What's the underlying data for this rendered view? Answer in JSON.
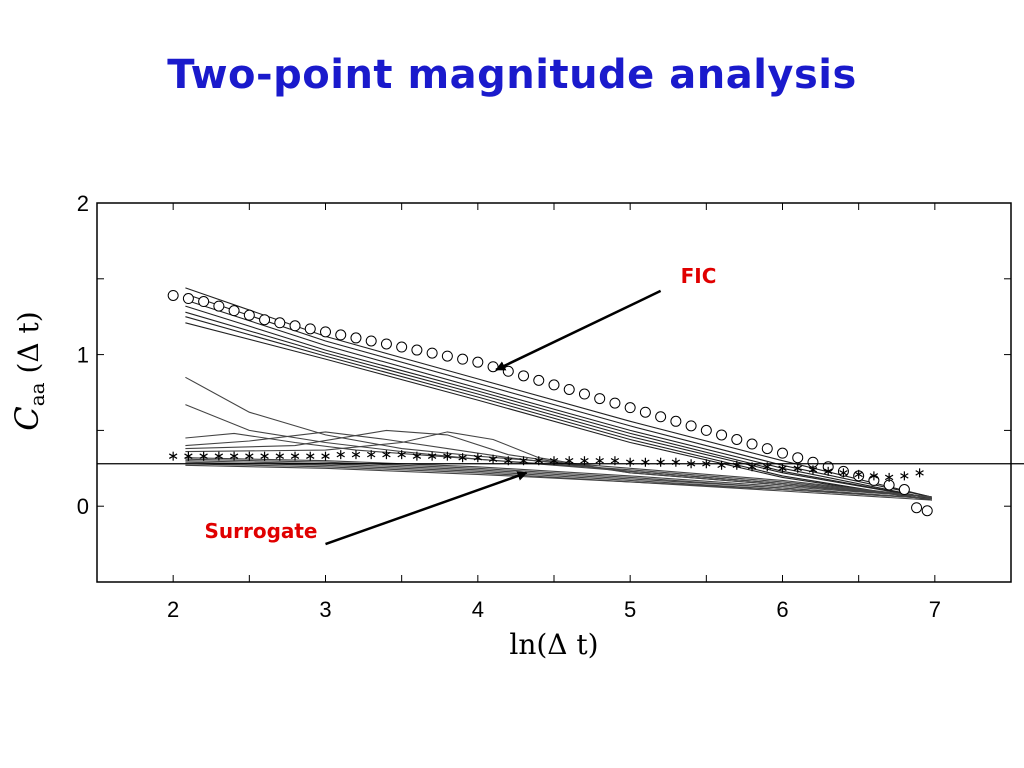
{
  "slide": {
    "title": "Two-point magnitude analysis"
  },
  "colors": {
    "title": "#1a1acc",
    "annotation": "#e00000",
    "axis": "#000000",
    "surrogate_line": "#444444",
    "fic_line": "#222222"
  },
  "chart_data": {
    "type": "line",
    "title": "",
    "xlabel": "ln(Δ t)",
    "ylabel_main": "C",
    "ylabel_sub": "aa",
    "ylabel_rest": " (Δ t)",
    "xlim": [
      1.5,
      7.5
    ],
    "ylim": [
      -0.5,
      2.0
    ],
    "xticks": [
      2,
      3,
      4,
      5,
      6,
      7
    ],
    "yticks": [
      0,
      1,
      2
    ],
    "grid": false,
    "reference_line": {
      "y": 0.28
    },
    "annotations": [
      {
        "text": "FIC",
        "arrow_from": [
          5.2,
          1.42
        ],
        "arrow_to": [
          4.12,
          0.9
        ]
      },
      {
        "text": "Surrogate",
        "arrow_from": [
          3.0,
          -0.25
        ],
        "arrow_to": [
          4.32,
          0.22
        ]
      }
    ],
    "series": [
      {
        "marker": "circle",
        "x": [
          2.0,
          2.1,
          2.2,
          2.3,
          2.4,
          2.5,
          2.6,
          2.7,
          2.8,
          2.9,
          3.0,
          3.1,
          3.2,
          3.3,
          3.4,
          3.5,
          3.6,
          3.7,
          3.8,
          3.9,
          4.0,
          4.1,
          4.2,
          4.3,
          4.4,
          4.5,
          4.6,
          4.7,
          4.8,
          4.9,
          5.0,
          5.1,
          5.2,
          5.3,
          5.4,
          5.5,
          5.6,
          5.7,
          5.8,
          5.9,
          6.0,
          6.1,
          6.2,
          6.3,
          6.4,
          6.5,
          6.6,
          6.7,
          6.8,
          6.88,
          6.95
        ],
        "y": [
          1.39,
          1.37,
          1.35,
          1.32,
          1.29,
          1.26,
          1.23,
          1.21,
          1.19,
          1.17,
          1.15,
          1.13,
          1.11,
          1.09,
          1.07,
          1.05,
          1.03,
          1.01,
          0.99,
          0.97,
          0.95,
          0.92,
          0.89,
          0.86,
          0.83,
          0.8,
          0.77,
          0.74,
          0.71,
          0.68,
          0.65,
          0.62,
          0.59,
          0.56,
          0.53,
          0.5,
          0.47,
          0.44,
          0.41,
          0.38,
          0.35,
          0.32,
          0.29,
          0.26,
          0.23,
          0.2,
          0.17,
          0.14,
          0.11,
          -0.01,
          -0.03
        ]
      },
      {
        "marker": "asterisk",
        "x": [
          2.0,
          2.1,
          2.2,
          2.3,
          2.4,
          2.5,
          2.6,
          2.7,
          2.8,
          2.9,
          3.0,
          3.1,
          3.2,
          3.3,
          3.4,
          3.5,
          3.6,
          3.7,
          3.8,
          3.9,
          4.0,
          4.1,
          4.2,
          4.3,
          4.4,
          4.5,
          4.6,
          4.7,
          4.8,
          4.9,
          5.0,
          5.1,
          5.2,
          5.3,
          5.4,
          5.5,
          5.6,
          5.7,
          5.8,
          5.9,
          6.0,
          6.1,
          6.2,
          6.3,
          6.4,
          6.5,
          6.6,
          6.7,
          6.8,
          6.9
        ],
        "y": [
          0.33,
          0.33,
          0.33,
          0.33,
          0.33,
          0.33,
          0.33,
          0.33,
          0.33,
          0.33,
          0.33,
          0.34,
          0.34,
          0.34,
          0.34,
          0.34,
          0.33,
          0.33,
          0.33,
          0.32,
          0.32,
          0.31,
          0.3,
          0.3,
          0.3,
          0.3,
          0.3,
          0.3,
          0.3,
          0.3,
          0.29,
          0.29,
          0.29,
          0.29,
          0.28,
          0.28,
          0.27,
          0.27,
          0.26,
          0.26,
          0.25,
          0.25,
          0.24,
          0.23,
          0.22,
          0.21,
          0.2,
          0.19,
          0.2,
          0.22
        ]
      },
      {
        "marker": "line",
        "style": "fic",
        "x": [
          2.08,
          3,
          4,
          5,
          6,
          6.98
        ],
        "y": [
          1.44,
          1.12,
          0.84,
          0.56,
          0.3,
          0.06
        ]
      },
      {
        "marker": "line",
        "style": "fic",
        "x": [
          2.08,
          3,
          4,
          5,
          6,
          6.98
        ],
        "y": [
          1.4,
          1.09,
          0.81,
          0.53,
          0.27,
          0.06
        ]
      },
      {
        "marker": "line",
        "style": "fic",
        "x": [
          2.08,
          3,
          4,
          5,
          6,
          6.98
        ],
        "y": [
          1.36,
          1.06,
          0.78,
          0.5,
          0.25,
          0.05
        ]
      },
      {
        "marker": "line",
        "style": "fic",
        "x": [
          2.08,
          3,
          4,
          5,
          6,
          6.98
        ],
        "y": [
          1.32,
          1.03,
          0.76,
          0.48,
          0.23,
          0.05
        ]
      },
      {
        "marker": "line",
        "style": "fic",
        "x": [
          2.08,
          3,
          4,
          5,
          6,
          6.98
        ],
        "y": [
          1.28,
          1.01,
          0.74,
          0.46,
          0.22,
          0.05
        ]
      },
      {
        "marker": "line",
        "style": "fic",
        "x": [
          2.08,
          3,
          4,
          5,
          6,
          6.98
        ],
        "y": [
          1.25,
          0.99,
          0.72,
          0.44,
          0.2,
          0.04
        ]
      },
      {
        "marker": "line",
        "style": "fic",
        "x": [
          2.08,
          3,
          4,
          5,
          6,
          6.98
        ],
        "y": [
          1.21,
          0.97,
          0.7,
          0.42,
          0.19,
          0.04
        ]
      },
      {
        "marker": "line",
        "style": "surrogate",
        "x": [
          2.08,
          2.5,
          3,
          3.5,
          4,
          5,
          6,
          6.98
        ],
        "y": [
          0.85,
          0.62,
          0.47,
          0.38,
          0.33,
          0.25,
          0.17,
          0.06
        ]
      },
      {
        "marker": "line",
        "style": "surrogate",
        "x": [
          2.08,
          2.5,
          3,
          3.5,
          4,
          5,
          6,
          6.98
        ],
        "y": [
          0.67,
          0.5,
          0.42,
          0.36,
          0.31,
          0.24,
          0.16,
          0.06
        ]
      },
      {
        "marker": "line",
        "style": "surrogate",
        "x": [
          2.08,
          2.4,
          2.8,
          3.2,
          3.6,
          4,
          5,
          6,
          6.98
        ],
        "y": [
          0.45,
          0.48,
          0.42,
          0.37,
          0.34,
          0.31,
          0.23,
          0.15,
          0.06
        ]
      },
      {
        "marker": "line",
        "style": "surrogate",
        "x": [
          2.08,
          2.5,
          3,
          3.4,
          3.8,
          4.2,
          5,
          6,
          6.98
        ],
        "y": [
          0.4,
          0.43,
          0.49,
          0.44,
          0.38,
          0.32,
          0.23,
          0.15,
          0.06
        ]
      },
      {
        "marker": "line",
        "style": "surrogate",
        "x": [
          2.08,
          2.8,
          3.4,
          3.8,
          4.2,
          5,
          6,
          6.98
        ],
        "y": [
          0.38,
          0.4,
          0.5,
          0.47,
          0.34,
          0.22,
          0.14,
          0.06
        ]
      },
      {
        "marker": "line",
        "style": "surrogate",
        "x": [
          2.08,
          3,
          3.5,
          3.8,
          4.1,
          4.4,
          5,
          6,
          6.98
        ],
        "y": [
          0.36,
          0.37,
          0.42,
          0.49,
          0.44,
          0.32,
          0.22,
          0.14,
          0.06
        ]
      },
      {
        "marker": "line",
        "style": "surrogate",
        "x": [
          2.08,
          3,
          4,
          5,
          6,
          6.98
        ],
        "y": [
          0.32,
          0.3,
          0.26,
          0.2,
          0.13,
          0.06
        ]
      },
      {
        "marker": "line",
        "style": "surrogate",
        "x": [
          2.08,
          3,
          4,
          5,
          6,
          6.98
        ],
        "y": [
          0.31,
          0.29,
          0.25,
          0.19,
          0.12,
          0.05
        ]
      },
      {
        "marker": "line",
        "style": "surrogate",
        "x": [
          2.08,
          3,
          4,
          5,
          6,
          6.98
        ],
        "y": [
          0.3,
          0.28,
          0.24,
          0.18,
          0.12,
          0.05
        ]
      },
      {
        "marker": "line",
        "style": "surrogate",
        "x": [
          2.08,
          3,
          4,
          5,
          6,
          6.98
        ],
        "y": [
          0.29,
          0.27,
          0.23,
          0.17,
          0.11,
          0.05
        ]
      },
      {
        "marker": "line",
        "style": "surrogate",
        "x": [
          2.08,
          3,
          4,
          5,
          6,
          6.98
        ],
        "y": [
          0.28,
          0.26,
          0.22,
          0.16,
          0.11,
          0.05
        ]
      },
      {
        "marker": "line",
        "style": "surrogate",
        "x": [
          2.08,
          3,
          4,
          5,
          6,
          6.98
        ],
        "y": [
          0.27,
          0.25,
          0.21,
          0.16,
          0.1,
          0.04
        ]
      }
    ]
  }
}
